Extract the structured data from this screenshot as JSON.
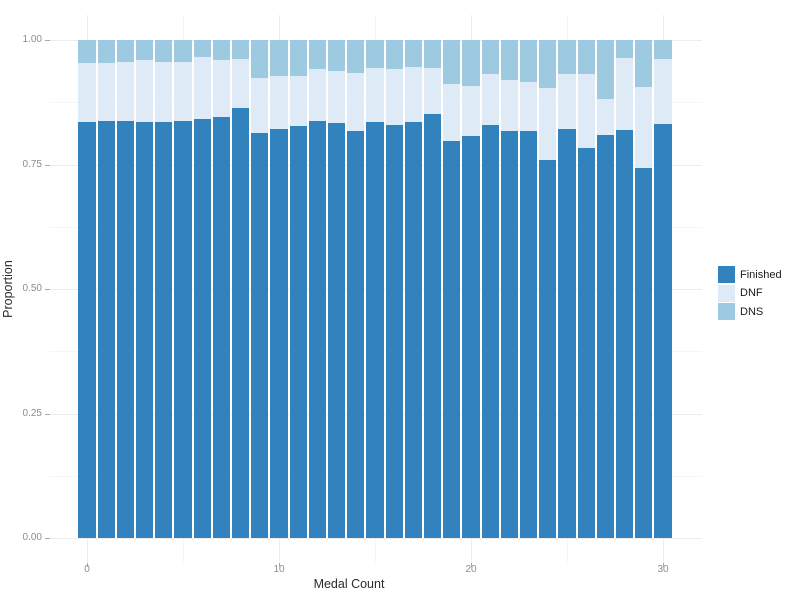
{
  "chart_data": {
    "type": "bar",
    "stacking": "fill",
    "orientation": "vertical",
    "title": "",
    "xlabel": "Medal Count",
    "ylabel": "Proportion",
    "x": [
      0,
      1,
      2,
      3,
      4,
      5,
      6,
      7,
      8,
      9,
      10,
      11,
      12,
      13,
      14,
      15,
      16,
      17,
      18,
      19,
      20,
      21,
      22,
      23,
      24,
      25,
      26,
      27,
      28,
      29,
      30
    ],
    "series": [
      {
        "name": "Finished",
        "color": "#3182BD",
        "values": [
          0.835,
          0.837,
          0.838,
          0.835,
          0.836,
          0.838,
          0.841,
          0.845,
          0.864,
          0.814,
          0.821,
          0.827,
          0.838,
          0.833,
          0.817,
          0.836,
          0.829,
          0.836,
          0.852,
          0.797,
          0.807,
          0.829,
          0.817,
          0.817,
          0.759,
          0.821,
          0.784,
          0.809,
          0.819,
          0.742,
          0.831
        ]
      },
      {
        "name": "DNF",
        "color": "#DEEBF7",
        "values": [
          0.118,
          0.116,
          0.118,
          0.125,
          0.119,
          0.117,
          0.124,
          0.115,
          0.097,
          0.11,
          0.107,
          0.101,
          0.104,
          0.105,
          0.117,
          0.108,
          0.112,
          0.109,
          0.091,
          0.115,
          0.101,
          0.103,
          0.102,
          0.098,
          0.145,
          0.11,
          0.147,
          0.072,
          0.144,
          0.164,
          0.131
        ]
      },
      {
        "name": "DNS",
        "color": "#9ECAE1",
        "values": [
          0.047,
          0.047,
          0.044,
          0.04,
          0.045,
          0.045,
          0.035,
          0.04,
          0.039,
          0.076,
          0.072,
          0.072,
          0.058,
          0.062,
          0.066,
          0.056,
          0.059,
          0.055,
          0.057,
          0.088,
          0.092,
          0.068,
          0.081,
          0.085,
          0.096,
          0.069,
          0.069,
          0.119,
          0.037,
          0.094,
          0.038
        ]
      }
    ],
    "stack_order_bottom_to_top": [
      "Finished",
      "DNF",
      "DNS"
    ],
    "ylim": [
      0,
      1
    ],
    "y_ticks": [
      {
        "value": 1.0,
        "label": "1.00"
      },
      {
        "value": 0.75,
        "label": "0.75"
      },
      {
        "value": 0.5,
        "label": "0.50"
      },
      {
        "value": 0.25,
        "label": "0.25"
      },
      {
        "value": 0.0,
        "label": "0.00"
      }
    ],
    "y_minor_ticks": [
      0.875,
      0.625,
      0.375,
      0.125
    ],
    "x_ticks": [
      {
        "value": 0,
        "label": "0"
      },
      {
        "value": 10,
        "label": "10"
      },
      {
        "value": 20,
        "label": "20"
      },
      {
        "value": 30,
        "label": "30"
      }
    ],
    "x_minor_ticks": [
      5,
      15,
      25
    ],
    "grid": true,
    "legend_position": "right"
  },
  "legend": {
    "entries": [
      {
        "label": "Finished",
        "color": "#3182BD"
      },
      {
        "label": "DNF",
        "color": "#DEEBF7"
      },
      {
        "label": "DNS",
        "color": "#9ECAE1"
      }
    ]
  },
  "style": {
    "background": "#FFFFFF",
    "grid_major_color": "#ECECEC",
    "grid_minor_color": "#F6F6F6",
    "tick_color": "#A9A9A9",
    "tick_label_color": "#8D8D8D",
    "axis_title_color": "#2B2B2B",
    "legend_label_color": "#1A1A1A"
  }
}
